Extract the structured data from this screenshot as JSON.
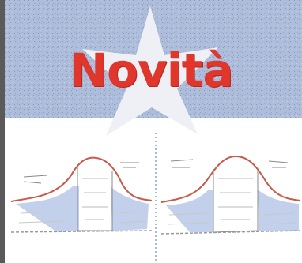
{
  "headline": "Novità",
  "colors": {
    "sky": "#a9b9d6",
    "sky_speckle": "#7f93bd",
    "burst": "#eceef5",
    "title_red": "#e0362c",
    "sketch_line": "#c75a4a",
    "sketch_blue": "#6d8fcf",
    "sketch_ink": "#777777"
  },
  "icons": [
    "starburst-icon"
  ]
}
